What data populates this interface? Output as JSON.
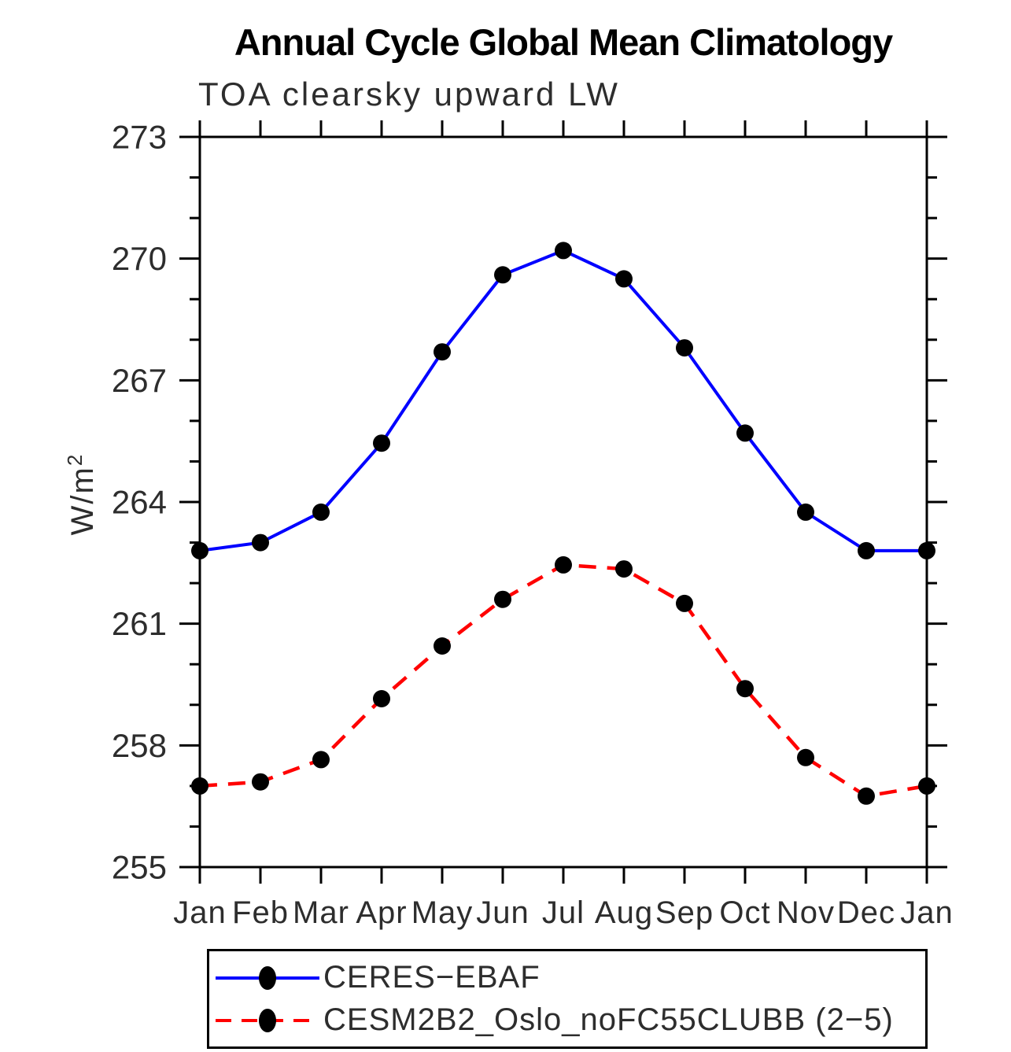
{
  "title": "Annual Cycle Global Mean Climatology",
  "subtitle": "TOA clearsky upward LW",
  "y_axis": {
    "label_base": "W/m",
    "label_exponent": "2",
    "major_tick_labels": [
      "273",
      "270",
      "267",
      "264",
      "261",
      "258",
      "255"
    ]
  },
  "legend": {
    "marker_color": "#000000",
    "entries": [
      {
        "label": "CERES−EBAF",
        "color": "#0000ff",
        "style": "solid"
      },
      {
        "label": "CESM2B2_Oslo_noFC55CLUBB (2−5)",
        "color": "#ff0000",
        "style": "dashed"
      }
    ]
  },
  "chart_data": {
    "type": "line",
    "title": "Annual Cycle Global Mean Climatology",
    "subtitle": "TOA clearsky upward LW",
    "xlabel": "",
    "ylabel": "W/m^2",
    "ylim": [
      255,
      273
    ],
    "y_major_ticks": [
      255,
      258,
      261,
      264,
      267,
      270,
      273
    ],
    "y_minor_interval": 1,
    "grid": false,
    "legend_position": "below",
    "categories": [
      "Jan",
      "Feb",
      "Mar",
      "Apr",
      "May",
      "Jun",
      "Jul",
      "Aug",
      "Sep",
      "Oct",
      "Nov",
      "Dec",
      "Jan"
    ],
    "series": [
      {
        "name": "CERES-EBAF",
        "color": "#0000ff",
        "line_style": "solid",
        "marker": "filled-circle",
        "marker_color": "#000000",
        "values": [
          262.8,
          263.0,
          263.75,
          265.45,
          267.7,
          269.6,
          270.2,
          269.5,
          267.8,
          265.7,
          263.75,
          262.8,
          262.8
        ]
      },
      {
        "name": "CESM2B2_Oslo_noFC55CLUBB (2-5)",
        "color": "#ff0000",
        "line_style": "dashed",
        "marker": "filled-circle",
        "marker_color": "#000000",
        "values": [
          257.0,
          257.1,
          257.65,
          259.15,
          260.45,
          261.6,
          262.45,
          262.35,
          261.5,
          259.4,
          257.7,
          256.75,
          257.0
        ]
      }
    ]
  }
}
